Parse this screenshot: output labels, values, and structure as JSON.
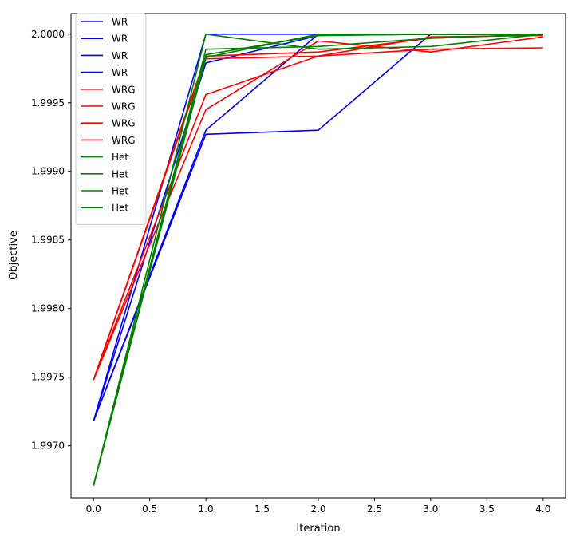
{
  "chart_data": {
    "type": "line",
    "title": "",
    "xlabel": "Iteration",
    "ylabel": "Objective",
    "xlim": [
      -0.2,
      4.2
    ],
    "ylim": [
      1.99662,
      2.00015
    ],
    "xticks": [
      0.0,
      0.5,
      1.0,
      1.5,
      2.0,
      2.5,
      3.0,
      3.5,
      4.0
    ],
    "xtick_labels": [
      "0.0",
      "0.5",
      "1.0",
      "1.5",
      "2.0",
      "2.5",
      "3.0",
      "3.5",
      "4.0"
    ],
    "yticks": [
      1.997,
      1.9975,
      1.998,
      1.9985,
      1.999,
      1.9995,
      2.0
    ],
    "ytick_labels": [
      "1.9970",
      "1.9975",
      "1.9980",
      "1.9985",
      "1.9990",
      "1.9995",
      "2.0000"
    ],
    "grid": false,
    "legend_position": "top-left",
    "colors": {
      "WR": "#0000ff",
      "WRG": "#ff0000",
      "Het": "#008000"
    },
    "x": [
      0,
      1,
      2,
      3,
      4
    ],
    "series": [
      {
        "name": "WR",
        "color": "#0000ff",
        "values": [
          1.99718,
          2.0,
          2.0,
          2.0,
          2.0
        ]
      },
      {
        "name": "WR",
        "color": "#0000ff",
        "values": [
          1.99718,
          1.99979,
          1.99999,
          2.0,
          2.0
        ]
      },
      {
        "name": "WR",
        "color": "#0000ff",
        "values": [
          1.99718,
          1.99927,
          1.9993,
          2.0,
          2.0
        ]
      },
      {
        "name": "WR",
        "color": "#0000ff",
        "values": [
          1.99718,
          1.9993,
          2.0,
          2.0,
          2.0
        ]
      },
      {
        "name": "WRG",
        "color": "#ff0000",
        "values": [
          1.99748,
          1.99982,
          1.99984,
          1.99989,
          1.9999
        ]
      },
      {
        "name": "WRG",
        "color": "#ff0000",
        "values": [
          1.99748,
          1.99945,
          1.99995,
          1.99987,
          1.99998
        ]
      },
      {
        "name": "WRG",
        "color": "#ff0000",
        "values": [
          1.99748,
          1.99956,
          1.99984,
          1.99998,
          1.99999
        ]
      },
      {
        "name": "WRG",
        "color": "#ff0000",
        "values": [
          1.99748,
          1.99984,
          1.99987,
          1.99997,
          2.0
        ]
      },
      {
        "name": "Het",
        "color": "#008000",
        "values": [
          1.99671,
          1.99989,
          1.99991,
          1.99997,
          2.0
        ]
      },
      {
        "name": "Het",
        "color": "#008000",
        "values": [
          1.99671,
          2.0,
          1.99989,
          1.99991,
          2.0
        ]
      },
      {
        "name": "Het",
        "color": "#008000",
        "values": [
          1.99671,
          1.99983,
          2.0,
          2.0,
          2.0
        ]
      },
      {
        "name": "Het",
        "color": "#008000",
        "values": [
          1.99671,
          1.99985,
          1.99999,
          2.0,
          2.0
        ]
      }
    ]
  }
}
